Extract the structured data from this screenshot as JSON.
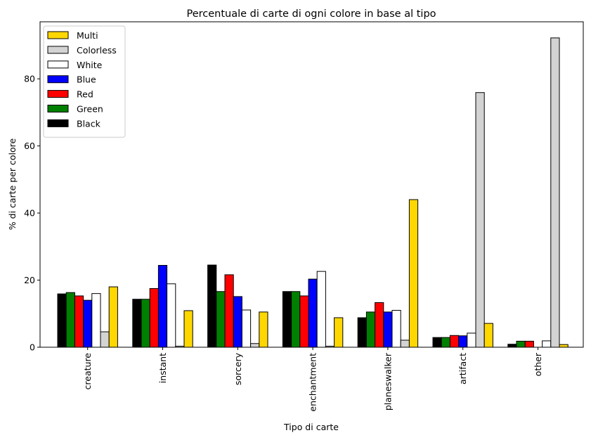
{
  "chart_data": {
    "type": "bar",
    "title": "Percentuale di carte di ogni colore in base al tipo",
    "xlabel": "Tipo di carte",
    "ylabel": "% di carte per colore",
    "categories": [
      "creature",
      "instant",
      "sorcery",
      "enchantment",
      "planeswalker",
      "artifact",
      "other"
    ],
    "ylim": [
      0,
      97
    ],
    "yticks": [
      0,
      20,
      40,
      60,
      80
    ],
    "grid": false,
    "legend_position": "top-left",
    "series": [
      {
        "name": "Black",
        "color": "#000000",
        "values": [
          15.9,
          14.3,
          24.5,
          16.6,
          8.8,
          2.9,
          0.9
        ]
      },
      {
        "name": "Green",
        "color": "#008000",
        "values": [
          16.3,
          14.3,
          16.6,
          16.6,
          10.5,
          2.9,
          1.8
        ]
      },
      {
        "name": "Red",
        "color": "#ff0000",
        "values": [
          15.3,
          17.5,
          21.6,
          15.3,
          13.3,
          3.5,
          1.8
        ]
      },
      {
        "name": "Blue",
        "color": "#0000ff",
        "values": [
          14.0,
          24.4,
          15.1,
          20.3,
          10.5,
          3.4,
          0.0
        ]
      },
      {
        "name": "White",
        "color": "#ffffff",
        "values": [
          16.0,
          18.9,
          11.1,
          22.6,
          11.0,
          4.2,
          1.9
        ]
      },
      {
        "name": "Colorless",
        "color": "#d3d3d3",
        "values": [
          4.6,
          0.3,
          1.1,
          0.3,
          2.1,
          75.9,
          92.2
        ]
      },
      {
        "name": "Multi",
        "color": "#ffd700",
        "values": [
          18.0,
          10.9,
          10.5,
          8.8,
          44.0,
          7.1,
          0.8
        ]
      }
    ],
    "legend_order": [
      "Multi",
      "Colorless",
      "White",
      "Blue",
      "Red",
      "Green",
      "Black"
    ]
  }
}
